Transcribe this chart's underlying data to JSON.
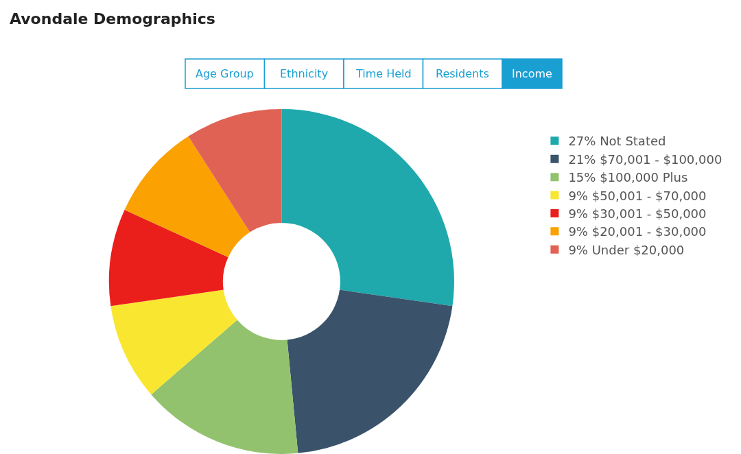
{
  "chart_data": {
    "type": "donut",
    "title": "Avondale Demographics",
    "annotations": [
      "Age Group",
      "Ethnicity",
      "Time Held",
      "Residents",
      "Income"
    ],
    "categories": [
      "Not Stated",
      "$70,001 - $100,000",
      "$100,000 Plus",
      "$50,001 - $70,000",
      "$30,001 - $50,000",
      "$20,001 - $30,000",
      "Under $20,000"
    ],
    "values": [
      27,
      21,
      15,
      9,
      9,
      9,
      9
    ],
    "value_labels": [
      "27%",
      "21%",
      "15%",
      "9%",
      "9%",
      "9%",
      "9%"
    ],
    "colors": [
      "#1fa9ad",
      "#3a526a",
      "#93c26e",
      "#f9e631",
      "#ea1f1b",
      "#fba101",
      "#e06255"
    ],
    "legend": "right"
  }
}
